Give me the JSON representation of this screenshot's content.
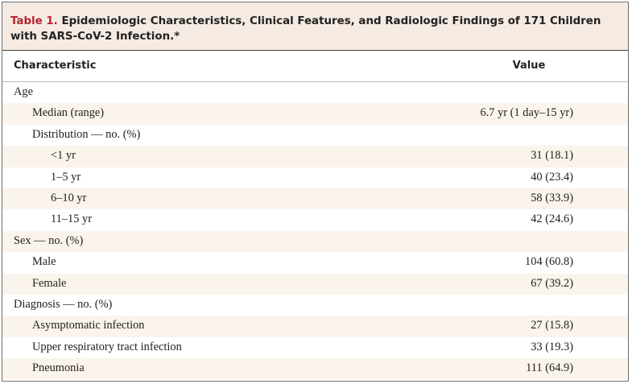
{
  "table": {
    "title_label": "Table 1.",
    "title_text": " Epidemiologic Characteristics, Clinical Features, and Radiologic Findings of 171 Children with SARS-CoV-2 Infection.*",
    "headers": [
      "Characteristic",
      "Value"
    ],
    "rows": [
      {
        "label": "Age",
        "value": ""
      },
      {
        "label": "Median (range)",
        "value": "6.7 yr (1 day–15 yr)"
      },
      {
        "label": "Distribution — no. (%)",
        "value": ""
      },
      {
        "label": "<1 yr",
        "value": "31 (18.1)"
      },
      {
        "label": "1–5 yr",
        "value": "40 (23.4)"
      },
      {
        "label": "6–10 yr",
        "value": "58 (33.9)"
      },
      {
        "label": "11–15 yr",
        "value": "42 (24.6)"
      },
      {
        "label": "Sex — no. (%)",
        "value": ""
      },
      {
        "label": "Male",
        "value": "104 (60.8)"
      },
      {
        "label": "Female",
        "value": "67 (39.2)"
      },
      {
        "label": "Diagnosis — no. (%)",
        "value": ""
      },
      {
        "label": "Asymptomatic infection",
        "value": "27 (15.8)"
      },
      {
        "label": "Upper respiratory tract infection",
        "value": "33 (19.3)"
      },
      {
        "label": "Pneumonia",
        "value": "111 (64.9)"
      }
    ]
  }
}
